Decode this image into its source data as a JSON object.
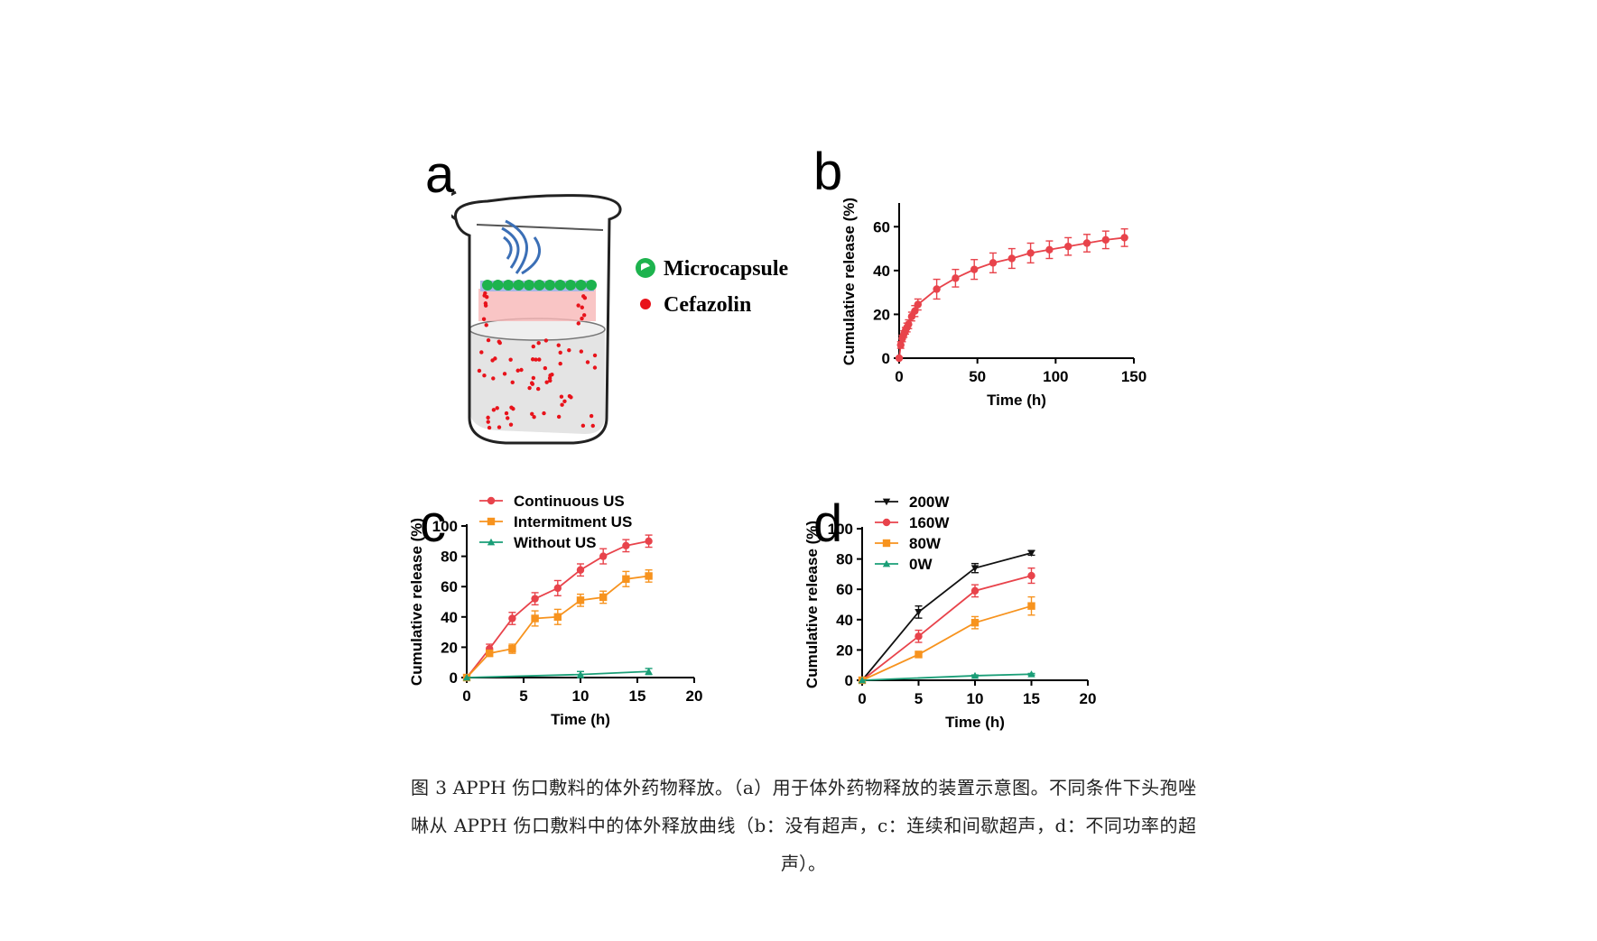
{
  "panels": {
    "a": {
      "letter": "a",
      "legend": [
        {
          "label": "Microcapsule",
          "color": "#1db34e"
        },
        {
          "label": "Cefazolin",
          "color": "#e8131b"
        }
      ]
    },
    "b": {
      "letter": "b"
    },
    "c": {
      "letter": "c"
    },
    "d": {
      "letter": "d"
    }
  },
  "chart_data": [
    {
      "id": "b",
      "type": "line",
      "xlabel": "Time (h)",
      "ylabel": "Cumulative release (%)",
      "xlim": [
        0,
        150
      ],
      "ylim": [
        0,
        70
      ],
      "xticks": [
        0,
        50,
        100,
        150
      ],
      "yticks": [
        0,
        20,
        40,
        60
      ],
      "legend": false,
      "series": [
        {
          "color": "#e8434b",
          "marker": "circle",
          "points": [
            {
              "x": 0,
              "y": 0,
              "err": 0
            },
            {
              "x": 1,
              "y": 6,
              "err": 1.5
            },
            {
              "x": 2,
              "y": 9,
              "err": 1.5
            },
            {
              "x": 3,
              "y": 11,
              "err": 1.5
            },
            {
              "x": 4,
              "y": 12.5,
              "err": 1.5
            },
            {
              "x": 5,
              "y": 14,
              "err": 2
            },
            {
              "x": 6,
              "y": 15.5,
              "err": 2
            },
            {
              "x": 8,
              "y": 19,
              "err": 2
            },
            {
              "x": 10,
              "y": 21.5,
              "err": 2.5
            },
            {
              "x": 12,
              "y": 24.5,
              "err": 2.5
            },
            {
              "x": 24,
              "y": 31.5,
              "err": 4.5
            },
            {
              "x": 36,
              "y": 36.5,
              "err": 4
            },
            {
              "x": 48,
              "y": 40.5,
              "err": 4.5
            },
            {
              "x": 60,
              "y": 43.5,
              "err": 4.5
            },
            {
              "x": 72,
              "y": 45.5,
              "err": 4.5
            },
            {
              "x": 84,
              "y": 48,
              "err": 4.5
            },
            {
              "x": 96,
              "y": 49.5,
              "err": 4
            },
            {
              "x": 108,
              "y": 51,
              "err": 4
            },
            {
              "x": 120,
              "y": 52.5,
              "err": 4
            },
            {
              "x": 132,
              "y": 54,
              "err": 4
            },
            {
              "x": 144,
              "y": 55,
              "err": 4
            }
          ]
        }
      ]
    },
    {
      "id": "c",
      "type": "line",
      "xlabel": "Time (h)",
      "ylabel": "Cumulative release (%)",
      "xlim": [
        0,
        20
      ],
      "ylim": [
        0,
        100
      ],
      "xticks": [
        0,
        5,
        10,
        15,
        20
      ],
      "yticks": [
        0,
        20,
        40,
        60,
        80,
        100
      ],
      "legend": "top-left",
      "series": [
        {
          "name": "Continuous US",
          "color": "#e8434b",
          "marker": "circle",
          "points": [
            {
              "x": 0,
              "y": 0,
              "err": 0
            },
            {
              "x": 2,
              "y": 19,
              "err": 3
            },
            {
              "x": 4,
              "y": 39,
              "err": 4
            },
            {
              "x": 6,
              "y": 52,
              "err": 4
            },
            {
              "x": 8,
              "y": 59,
              "err": 5
            },
            {
              "x": 10,
              "y": 71,
              "err": 4
            },
            {
              "x": 12,
              "y": 80,
              "err": 5
            },
            {
              "x": 14,
              "y": 87,
              "err": 4
            },
            {
              "x": 16,
              "y": 90,
              "err": 4
            }
          ]
        },
        {
          "name": "Intermitment US",
          "color": "#f7931e",
          "marker": "square",
          "points": [
            {
              "x": 0,
              "y": 0,
              "err": 0
            },
            {
              "x": 2,
              "y": 16,
              "err": 2
            },
            {
              "x": 4,
              "y": 19,
              "err": 3
            },
            {
              "x": 6,
              "y": 39,
              "err": 5
            },
            {
              "x": 8,
              "y": 40,
              "err": 5
            },
            {
              "x": 10,
              "y": 51,
              "err": 4
            },
            {
              "x": 12,
              "y": 53,
              "err": 4
            },
            {
              "x": 14,
              "y": 65,
              "err": 5
            },
            {
              "x": 16,
              "y": 67,
              "err": 4
            }
          ]
        },
        {
          "name": "Without US",
          "color": "#1a9e77",
          "marker": "triangle",
          "points": [
            {
              "x": 0,
              "y": 0,
              "err": 0
            },
            {
              "x": 10,
              "y": 2,
              "err": 2
            },
            {
              "x": 16,
              "y": 4,
              "err": 2
            }
          ]
        }
      ]
    },
    {
      "id": "d",
      "type": "line",
      "xlabel": "Time (h)",
      "ylabel": "Cumulative release (%)",
      "xlim": [
        0,
        20
      ],
      "ylim": [
        0,
        100
      ],
      "xticks": [
        0,
        5,
        10,
        15,
        20
      ],
      "yticks": [
        0,
        20,
        40,
        60,
        80,
        100
      ],
      "legend": "top-left",
      "series": [
        {
          "name": "200W",
          "color": "#111111",
          "marker": "triangle-down",
          "points": [
            {
              "x": 0,
              "y": 0,
              "err": 0
            },
            {
              "x": 5,
              "y": 45,
              "err": 4
            },
            {
              "x": 10,
              "y": 74,
              "err": 3
            },
            {
              "x": 15,
              "y": 84,
              "err": 1.5
            }
          ]
        },
        {
          "name": "160W",
          "color": "#e8434b",
          "marker": "circle",
          "points": [
            {
              "x": 0,
              "y": 0,
              "err": 0
            },
            {
              "x": 5,
              "y": 29,
              "err": 4
            },
            {
              "x": 10,
              "y": 59,
              "err": 4
            },
            {
              "x": 15,
              "y": 69,
              "err": 5
            }
          ]
        },
        {
          "name": "80W",
          "color": "#f7931e",
          "marker": "square",
          "points": [
            {
              "x": 0,
              "y": 0,
              "err": 0
            },
            {
              "x": 5,
              "y": 17,
              "err": 2
            },
            {
              "x": 10,
              "y": 38,
              "err": 4
            },
            {
              "x": 15,
              "y": 49,
              "err": 6
            }
          ]
        },
        {
          "name": "0W",
          "color": "#1a9e77",
          "marker": "triangle",
          "points": [
            {
              "x": 0,
              "y": 0,
              "err": 0
            },
            {
              "x": 10,
              "y": 3,
              "err": 0.5
            },
            {
              "x": 15,
              "y": 4,
              "err": 0.5
            }
          ]
        }
      ]
    }
  ],
  "caption": {
    "text": "图 3 APPH 伤口敷料的体外药物释放。（a）用于体外药物释放的装置示意图。不同条件下头孢唑啉从 APPH 伤口敷料中的体外释放曲线（b：没有超声，c：连续和间歇超声，d：不同功率的超声）。"
  }
}
